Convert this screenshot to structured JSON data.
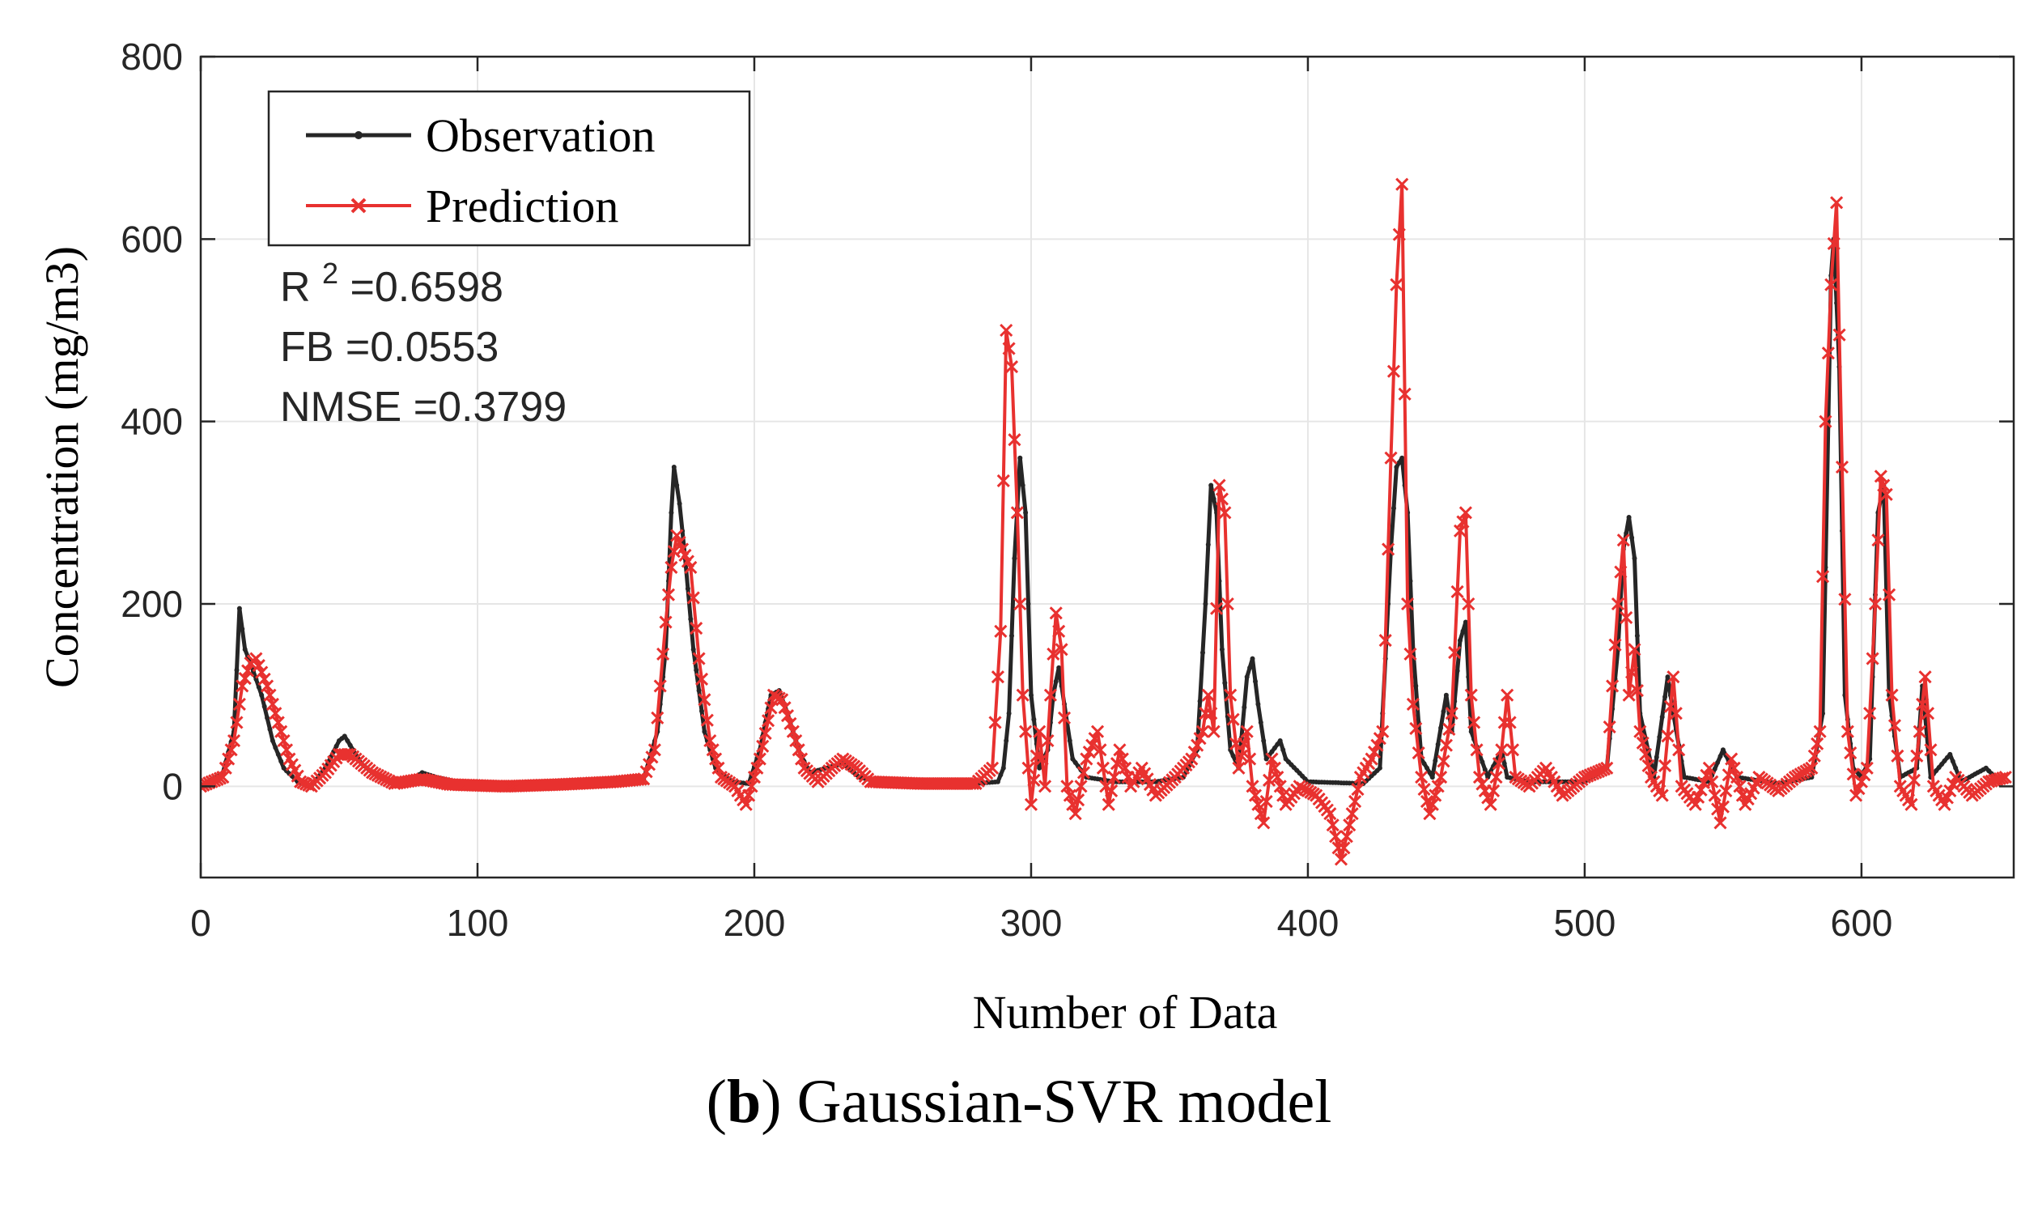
{
  "chart_data": {
    "type": "line",
    "title": "",
    "xlabel": "Number of Data",
    "ylabel": "Concentration  (mg/m3)",
    "xlim": [
      0,
      655
    ],
    "ylim": [
      -100,
      800
    ],
    "xticks": [
      "0",
      "100",
      "200",
      "300",
      "400",
      "500",
      "600"
    ],
    "yticks": [
      "0",
      "200",
      "400",
      "600",
      "800"
    ],
    "grid": true,
    "legend_position": "top-left",
    "series": [
      {
        "name": "Observation",
        "color": "#262626",
        "marker": "dot",
        "keypoints": [
          [
            0,
            0
          ],
          [
            8,
            15
          ],
          [
            12,
            60
          ],
          [
            14,
            195
          ],
          [
            16,
            150
          ],
          [
            18,
            135
          ],
          [
            22,
            100
          ],
          [
            26,
            50
          ],
          [
            30,
            20
          ],
          [
            35,
            5
          ],
          [
            40,
            0
          ],
          [
            45,
            20
          ],
          [
            50,
            50
          ],
          [
            52,
            55
          ],
          [
            55,
            40
          ],
          [
            58,
            25
          ],
          [
            62,
            15
          ],
          [
            68,
            5
          ],
          [
            75,
            5
          ],
          [
            80,
            15
          ],
          [
            85,
            10
          ],
          [
            95,
            3
          ],
          [
            110,
            2
          ],
          [
            130,
            3
          ],
          [
            150,
            5
          ],
          [
            160,
            8
          ],
          [
            165,
            60
          ],
          [
            168,
            150
          ],
          [
            170,
            300
          ],
          [
            171,
            350
          ],
          [
            173,
            310
          ],
          [
            175,
            250
          ],
          [
            178,
            150
          ],
          [
            182,
            60
          ],
          [
            186,
            20
          ],
          [
            192,
            5
          ],
          [
            198,
            3
          ],
          [
            202,
            40
          ],
          [
            206,
            100
          ],
          [
            209,
            105
          ],
          [
            212,
            80
          ],
          [
            216,
            40
          ],
          [
            220,
            15
          ],
          [
            226,
            20
          ],
          [
            232,
            25
          ],
          [
            238,
            10
          ],
          [
            245,
            5
          ],
          [
            260,
            3
          ],
          [
            280,
            3
          ],
          [
            288,
            5
          ],
          [
            290,
            20
          ],
          [
            292,
            80
          ],
          [
            294,
            250
          ],
          [
            296,
            360
          ],
          [
            298,
            300
          ],
          [
            300,
            100
          ],
          [
            303,
            20
          ],
          [
            306,
            40
          ],
          [
            308,
            100
          ],
          [
            310,
            130
          ],
          [
            312,
            90
          ],
          [
            315,
            30
          ],
          [
            320,
            10
          ],
          [
            330,
            5
          ],
          [
            345,
            5
          ],
          [
            355,
            10
          ],
          [
            360,
            40
          ],
          [
            363,
            200
          ],
          [
            365,
            330
          ],
          [
            367,
            300
          ],
          [
            369,
            150
          ],
          [
            372,
            40
          ],
          [
            375,
            20
          ],
          [
            378,
            120
          ],
          [
            380,
            140
          ],
          [
            382,
            90
          ],
          [
            385,
            30
          ],
          [
            390,
            50
          ],
          [
            392,
            30
          ],
          [
            400,
            5
          ],
          [
            420,
            3
          ],
          [
            426,
            20
          ],
          [
            428,
            140
          ],
          [
            430,
            260
          ],
          [
            432,
            350
          ],
          [
            434,
            360
          ],
          [
            436,
            300
          ],
          [
            438,
            150
          ],
          [
            441,
            30
          ],
          [
            445,
            10
          ],
          [
            450,
            100
          ],
          [
            452,
            60
          ],
          [
            455,
            160
          ],
          [
            457,
            180
          ],
          [
            459,
            60
          ],
          [
            465,
            10
          ],
          [
            470,
            40
          ],
          [
            472,
            10
          ],
          [
            480,
            5
          ],
          [
            500,
            5
          ],
          [
            508,
            20
          ],
          [
            512,
            150
          ],
          [
            514,
            260
          ],
          [
            516,
            295
          ],
          [
            518,
            250
          ],
          [
            520,
            80
          ],
          [
            525,
            10
          ],
          [
            530,
            120
          ],
          [
            532,
            80
          ],
          [
            536,
            10
          ],
          [
            545,
            5
          ],
          [
            550,
            40
          ],
          [
            555,
            10
          ],
          [
            570,
            3
          ],
          [
            582,
            10
          ],
          [
            586,
            80
          ],
          [
            588,
            400
          ],
          [
            589,
            560
          ],
          [
            590,
            600
          ],
          [
            592,
            460
          ],
          [
            594,
            100
          ],
          [
            597,
            20
          ],
          [
            600,
            10
          ],
          [
            603,
            30
          ],
          [
            606,
            300
          ],
          [
            608,
            330
          ],
          [
            610,
            100
          ],
          [
            614,
            10
          ],
          [
            620,
            20
          ],
          [
            622,
            110
          ],
          [
            625,
            10
          ],
          [
            632,
            35
          ],
          [
            636,
            5
          ],
          [
            645,
            20
          ],
          [
            650,
            5
          ]
        ]
      },
      {
        "name": "Prediction",
        "color": "#e8312f",
        "marker": "x",
        "keypoints": [
          [
            0,
            0
          ],
          [
            8,
            10
          ],
          [
            12,
            50
          ],
          [
            15,
            110
          ],
          [
            18,
            135
          ],
          [
            20,
            140
          ],
          [
            24,
            110
          ],
          [
            28,
            70
          ],
          [
            32,
            30
          ],
          [
            36,
            5
          ],
          [
            40,
            0
          ],
          [
            45,
            15
          ],
          [
            50,
            35
          ],
          [
            54,
            35
          ],
          [
            58,
            25
          ],
          [
            62,
            15
          ],
          [
            70,
            3
          ],
          [
            80,
            8
          ],
          [
            90,
            2
          ],
          [
            110,
            0
          ],
          [
            130,
            2
          ],
          [
            150,
            5
          ],
          [
            160,
            8
          ],
          [
            164,
            40
          ],
          [
            168,
            180
          ],
          [
            170,
            240
          ],
          [
            172,
            275
          ],
          [
            174,
            260
          ],
          [
            177,
            240
          ],
          [
            180,
            140
          ],
          [
            184,
            50
          ],
          [
            188,
            10
          ],
          [
            193,
            0
          ],
          [
            197,
            -20
          ],
          [
            202,
            30
          ],
          [
            207,
            100
          ],
          [
            210,
            95
          ],
          [
            214,
            60
          ],
          [
            218,
            20
          ],
          [
            223,
            5
          ],
          [
            228,
            20
          ],
          [
            232,
            30
          ],
          [
            237,
            20
          ],
          [
            242,
            5
          ],
          [
            260,
            3
          ],
          [
            280,
            3
          ],
          [
            286,
            20
          ],
          [
            289,
            170
          ],
          [
            291,
            500
          ],
          [
            293,
            460
          ],
          [
            295,
            300
          ],
          [
            297,
            100
          ],
          [
            300,
            -20
          ],
          [
            303,
            60
          ],
          [
            305,
            0
          ],
          [
            307,
            100
          ],
          [
            309,
            190
          ],
          [
            311,
            150
          ],
          [
            313,
            0
          ],
          [
            316,
            -30
          ],
          [
            320,
            30
          ],
          [
            324,
            60
          ],
          [
            328,
            -20
          ],
          [
            332,
            40
          ],
          [
            336,
            0
          ],
          [
            340,
            20
          ],
          [
            345,
            -10
          ],
          [
            352,
            10
          ],
          [
            358,
            30
          ],
          [
            362,
            60
          ],
          [
            364,
            100
          ],
          [
            366,
            60
          ],
          [
            368,
            330
          ],
          [
            370,
            300
          ],
          [
            372,
            100
          ],
          [
            375,
            20
          ],
          [
            378,
            60
          ],
          [
            380,
            0
          ],
          [
            384,
            -40
          ],
          [
            387,
            30
          ],
          [
            392,
            -20
          ],
          [
            397,
            0
          ],
          [
            403,
            -10
          ],
          [
            408,
            -30
          ],
          [
            412,
            -80
          ],
          [
            416,
            -30
          ],
          [
            419,
            10
          ],
          [
            423,
            30
          ],
          [
            427,
            60
          ],
          [
            430,
            360
          ],
          [
            432,
            550
          ],
          [
            434,
            660
          ],
          [
            436,
            200
          ],
          [
            438,
            90
          ],
          [
            441,
            10
          ],
          [
            444,
            -30
          ],
          [
            448,
            10
          ],
          [
            452,
            80
          ],
          [
            455,
            280
          ],
          [
            457,
            300
          ],
          [
            459,
            100
          ],
          [
            462,
            10
          ],
          [
            466,
            -20
          ],
          [
            470,
            40
          ],
          [
            472,
            100
          ],
          [
            475,
            10
          ],
          [
            480,
            0
          ],
          [
            486,
            20
          ],
          [
            492,
            -10
          ],
          [
            500,
            10
          ],
          [
            508,
            20
          ],
          [
            512,
            200
          ],
          [
            514,
            270
          ],
          [
            516,
            100
          ],
          [
            518,
            150
          ],
          [
            520,
            60
          ],
          [
            524,
            10
          ],
          [
            528,
            -10
          ],
          [
            532,
            120
          ],
          [
            535,
            0
          ],
          [
            540,
            -20
          ],
          [
            545,
            20
          ],
          [
            549,
            -40
          ],
          [
            553,
            30
          ],
          [
            558,
            -20
          ],
          [
            563,
            10
          ],
          [
            570,
            -5
          ],
          [
            576,
            10
          ],
          [
            582,
            20
          ],
          [
            585,
            60
          ],
          [
            587,
            400
          ],
          [
            589,
            550
          ],
          [
            591,
            640
          ],
          [
            593,
            350
          ],
          [
            595,
            60
          ],
          [
            598,
            -10
          ],
          [
            602,
            20
          ],
          [
            605,
            200
          ],
          [
            607,
            340
          ],
          [
            609,
            320
          ],
          [
            611,
            100
          ],
          [
            614,
            0
          ],
          [
            618,
            -20
          ],
          [
            621,
            60
          ],
          [
            623,
            120
          ],
          [
            626,
            0
          ],
          [
            630,
            -20
          ],
          [
            634,
            10
          ],
          [
            640,
            -10
          ],
          [
            646,
            5
          ],
          [
            652,
            10
          ]
        ]
      }
    ],
    "annotations": [
      {
        "label": "R",
        "sup": "2",
        "value": " =0.6598"
      },
      {
        "label": "FB",
        "value": " =0.0553"
      },
      {
        "label": "NMSE",
        "value": " =0.3799"
      }
    ]
  },
  "caption": {
    "letter": "b",
    "text": " Gaussian-SVR model"
  }
}
